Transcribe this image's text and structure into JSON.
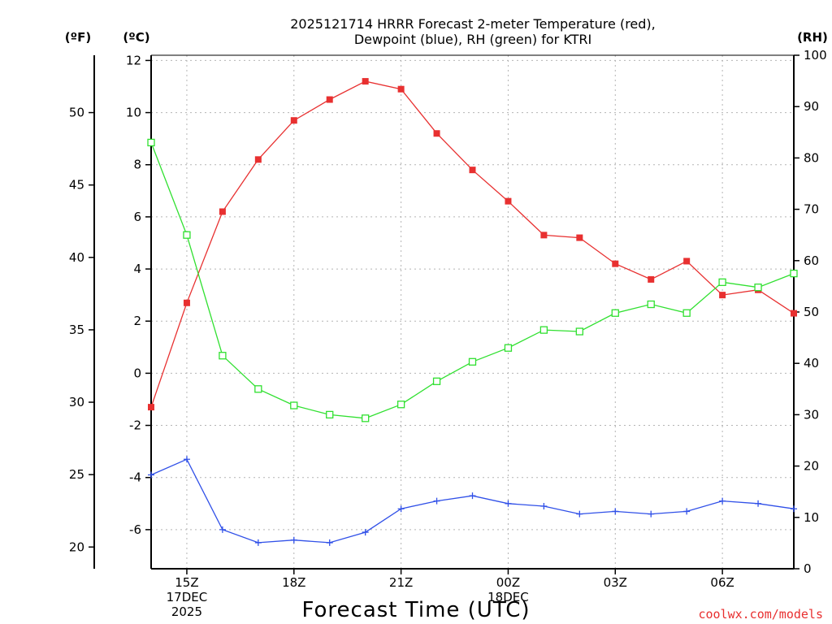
{
  "title": {
    "line1": "2025121714 HRRR Forecast 2-meter Temperature (red),",
    "line2": "Dewpoint (blue), RH (green) for KTRI"
  },
  "units": {
    "fahrenheit": "(ºF)",
    "celsius": "(ºC)",
    "rh": "(RH)"
  },
  "xlabel": "Forecast Time (UTC)",
  "credit": "coolwx.com/models",
  "x_ticks": [
    {
      "hour": 15,
      "lines": [
        "15Z",
        "17DEC",
        "2025"
      ]
    },
    {
      "hour": 18,
      "lines": [
        "18Z"
      ]
    },
    {
      "hour": 21,
      "lines": [
        "21Z"
      ]
    },
    {
      "hour": 24,
      "lines": [
        "00Z",
        "18DEC"
      ]
    },
    {
      "hour": 27,
      "lines": [
        "03Z"
      ]
    },
    {
      "hour": 30,
      "lines": [
        "06Z"
      ]
    }
  ],
  "celsius_ticks": [
    "-6",
    "-4",
    "-2",
    "0",
    "2",
    "4",
    "6",
    "8",
    "10",
    "12"
  ],
  "fahrenheit_ticks": [
    "20",
    "25",
    "30",
    "35",
    "40",
    "45",
    "50"
  ],
  "rh_ticks": [
    "0",
    "10",
    "20",
    "30",
    "40",
    "50",
    "60",
    "70",
    "80",
    "90",
    "100"
  ],
  "chart_data": {
    "type": "line",
    "x_unit": "hours UTC from 00Z 17DEC2025",
    "xlim": [
      14,
      32
    ],
    "ylim_celsius": [
      -7.5,
      12.2
    ],
    "ylim_fahrenheit": [
      18.5,
      54
    ],
    "ylim_rh": [
      0,
      100
    ],
    "grid": true,
    "x": [
      14,
      15,
      16,
      17,
      18,
      19,
      20,
      21,
      22,
      23,
      24,
      25,
      26,
      27,
      28,
      29,
      30,
      31,
      32
    ],
    "series": [
      {
        "name": "Temperature",
        "axis": "celsius",
        "color": "#e83030",
        "marker": "filled-square",
        "values": [
          -1.3,
          2.7,
          6.2,
          8.2,
          9.7,
          10.5,
          11.2,
          10.9,
          9.2,
          7.8,
          6.6,
          5.3,
          5.2,
          4.2,
          3.6,
          4.3,
          3.0,
          3.2,
          2.3
        ]
      },
      {
        "name": "Dewpoint",
        "axis": "celsius",
        "color": "#3050e8",
        "marker": "plus",
        "values": [
          -3.9,
          -3.3,
          -6.0,
          -6.5,
          -6.4,
          -6.5,
          -6.1,
          -5.2,
          -4.9,
          -4.7,
          -5.0,
          -5.1,
          -5.4,
          -5.3,
          -5.4,
          -5.3,
          -4.9,
          -5.0,
          -5.2
        ]
      },
      {
        "name": "RH",
        "axis": "rh",
        "color": "#30e030",
        "marker": "open-square",
        "values": [
          83,
          65,
          41.5,
          35,
          31.8,
          30,
          29.3,
          32,
          36.5,
          40.3,
          43,
          46.5,
          46.2,
          49.8,
          51.5,
          49.8,
          55.8,
          54.8,
          57.5
        ]
      }
    ]
  }
}
